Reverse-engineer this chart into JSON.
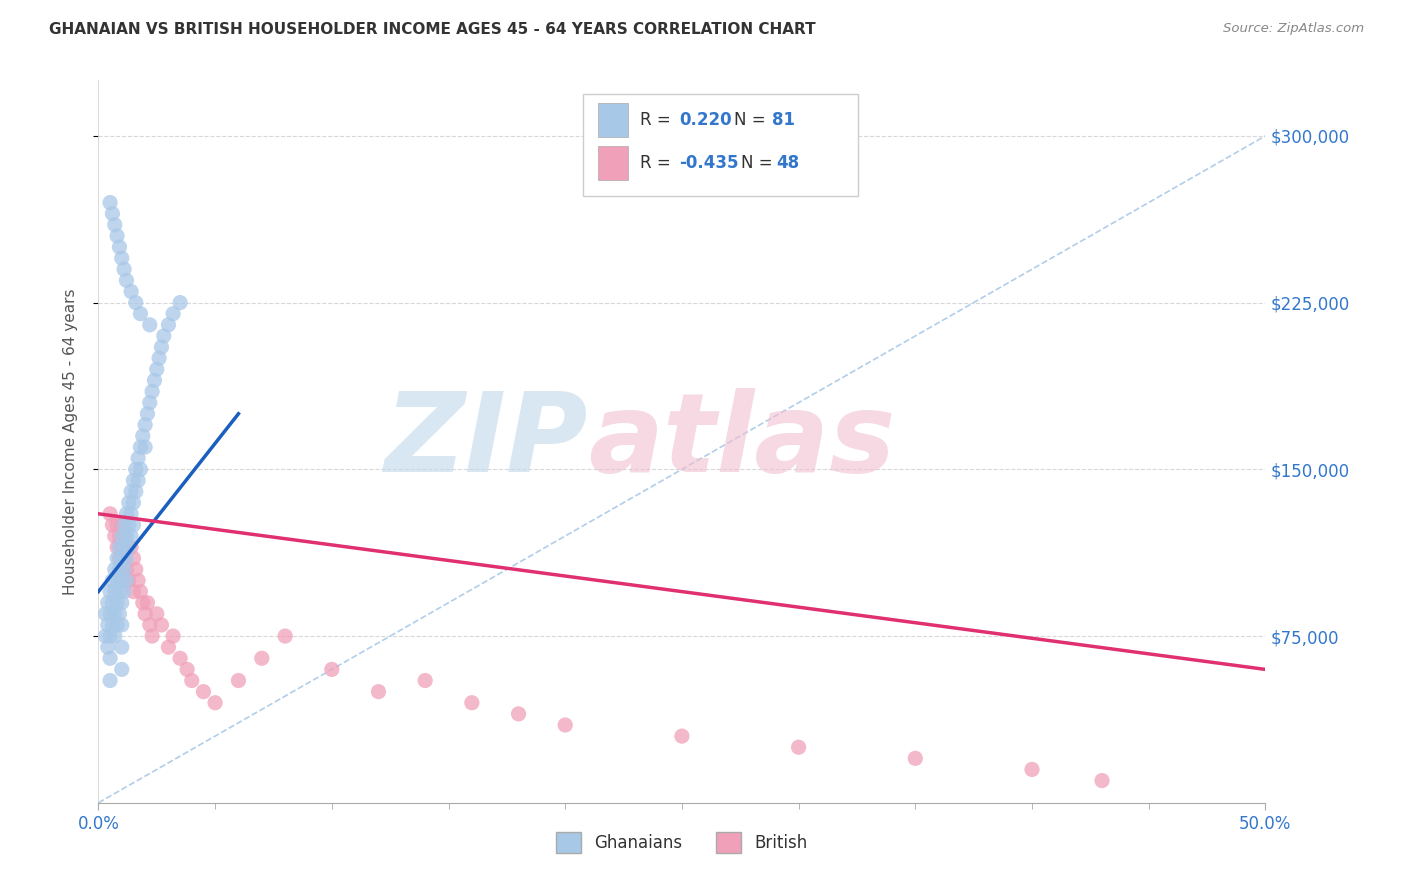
{
  "title": "GHANAIAN VS BRITISH HOUSEHOLDER INCOME AGES 45 - 64 YEARS CORRELATION CHART",
  "source": "Source: ZipAtlas.com",
  "ylabel": "Householder Income Ages 45 - 64 years",
  "ytick_labels": [
    "$75,000",
    "$150,000",
    "$225,000",
    "$300,000"
  ],
  "ytick_values": [
    75000,
    150000,
    225000,
    300000
  ],
  "xlim": [
    0.0,
    50.0
  ],
  "ylim": [
    0,
    325000
  ],
  "ghanaian_color": "#a8c8e8",
  "british_color": "#f0a0b8",
  "trend_ghanaian_color": "#1a5fbf",
  "trend_british_color": "#e03070",
  "ref_line_color": "#a8c8e8",
  "grid_color": "#d8d8d8",
  "ghanaian_r": 0.22,
  "ghanaian_n": 81,
  "british_r": -0.435,
  "british_n": 48,
  "ghanaians_x": [
    0.3,
    0.3,
    0.4,
    0.4,
    0.4,
    0.5,
    0.5,
    0.5,
    0.5,
    0.5,
    0.6,
    0.6,
    0.6,
    0.7,
    0.7,
    0.7,
    0.7,
    0.8,
    0.8,
    0.8,
    0.8,
    0.9,
    0.9,
    0.9,
    0.9,
    1.0,
    1.0,
    1.0,
    1.0,
    1.0,
    1.0,
    1.0,
    1.1,
    1.1,
    1.1,
    1.1,
    1.2,
    1.2,
    1.2,
    1.2,
    1.3,
    1.3,
    1.3,
    1.4,
    1.4,
    1.4,
    1.5,
    1.5,
    1.5,
    1.6,
    1.6,
    1.7,
    1.7,
    1.8,
    1.8,
    1.9,
    2.0,
    2.0,
    2.1,
    2.2,
    2.3,
    2.4,
    2.5,
    2.6,
    2.7,
    2.8,
    3.0,
    3.2,
    3.5,
    0.5,
    0.6,
    0.7,
    0.8,
    0.9,
    1.0,
    1.1,
    1.2,
    1.4,
    1.6,
    1.8,
    2.2
  ],
  "ghanaians_y": [
    85000,
    75000,
    90000,
    80000,
    70000,
    95000,
    85000,
    75000,
    65000,
    55000,
    100000,
    90000,
    80000,
    105000,
    95000,
    85000,
    75000,
    110000,
    100000,
    90000,
    80000,
    115000,
    105000,
    95000,
    85000,
    120000,
    110000,
    100000,
    90000,
    80000,
    70000,
    60000,
    125000,
    115000,
    105000,
    95000,
    130000,
    120000,
    110000,
    100000,
    135000,
    125000,
    115000,
    140000,
    130000,
    120000,
    145000,
    135000,
    125000,
    150000,
    140000,
    155000,
    145000,
    160000,
    150000,
    165000,
    170000,
    160000,
    175000,
    180000,
    185000,
    190000,
    195000,
    200000,
    205000,
    210000,
    215000,
    220000,
    225000,
    270000,
    265000,
    260000,
    255000,
    250000,
    245000,
    240000,
    235000,
    230000,
    225000,
    220000,
    215000
  ],
  "british_x": [
    0.5,
    0.6,
    0.7,
    0.8,
    0.8,
    0.9,
    0.9,
    1.0,
    1.0,
    1.0,
    1.1,
    1.1,
    1.2,
    1.3,
    1.4,
    1.5,
    1.5,
    1.6,
    1.7,
    1.8,
    1.9,
    2.0,
    2.1,
    2.2,
    2.3,
    2.5,
    2.7,
    3.0,
    3.2,
    3.5,
    3.8,
    4.0,
    4.5,
    5.0,
    6.0,
    7.0,
    8.0,
    10.0,
    12.0,
    14.0,
    16.0,
    18.0,
    20.0,
    25.0,
    30.0,
    35.0,
    40.0,
    43.0
  ],
  "british_y": [
    130000,
    125000,
    120000,
    115000,
    125000,
    110000,
    120000,
    105000,
    115000,
    125000,
    110000,
    120000,
    105000,
    100000,
    115000,
    110000,
    95000,
    105000,
    100000,
    95000,
    90000,
    85000,
    90000,
    80000,
    75000,
    85000,
    80000,
    70000,
    75000,
    65000,
    60000,
    55000,
    50000,
    45000,
    55000,
    65000,
    75000,
    60000,
    50000,
    55000,
    45000,
    40000,
    35000,
    30000,
    25000,
    20000,
    15000,
    10000
  ],
  "trend_ghana_x0": 0.0,
  "trend_ghana_x1": 6.0,
  "trend_ghana_y0": 95000,
  "trend_ghana_y1": 175000,
  "trend_brit_x0": 0.0,
  "trend_brit_x1": 50.0,
  "trend_brit_y0": 130000,
  "trend_brit_y1": 60000
}
